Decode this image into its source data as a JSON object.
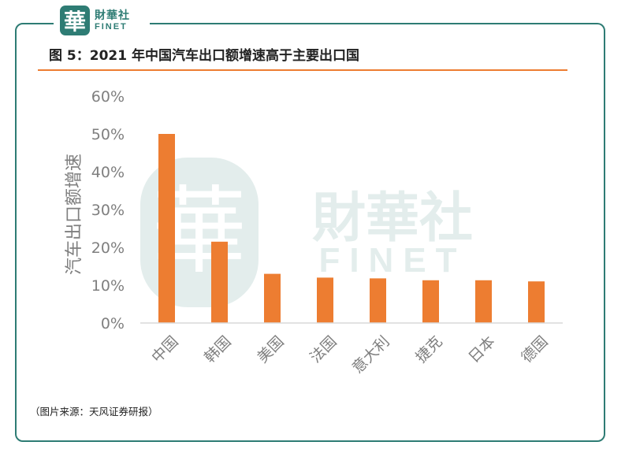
{
  "logo": {
    "seal": "華",
    "cn": "財華社",
    "en": "FINET"
  },
  "title": "图 5：2021 年中国汽车出口额增速高于主要出口国",
  "source": "（图片来源：天风证券研报）",
  "watermark": {
    "seal": "華",
    "cn": "財華社",
    "en": "FINET"
  },
  "colors": {
    "accent": "#ED7D31",
    "brand": "#2e7c74",
    "axis_text": "#7f7f7f"
  },
  "chart_data": {
    "type": "bar",
    "title": "图 5：2021 年中国汽车出口额增速高于主要出口国",
    "ylabel": "汽车出口额增速",
    "xlabel": "",
    "categories": [
      "中国",
      "韩国",
      "美国",
      "法国",
      "意大利",
      "捷克",
      "日本",
      "德国"
    ],
    "values": [
      50.0,
      21.5,
      13.0,
      12.0,
      11.8,
      11.3,
      11.3,
      11.0
    ],
    "ylim": [
      0,
      60
    ],
    "yticks": [
      "0%",
      "10%",
      "20%",
      "30%",
      "40%",
      "50%",
      "60%"
    ],
    "unit": "%",
    "grid": false,
    "legend": "none"
  }
}
